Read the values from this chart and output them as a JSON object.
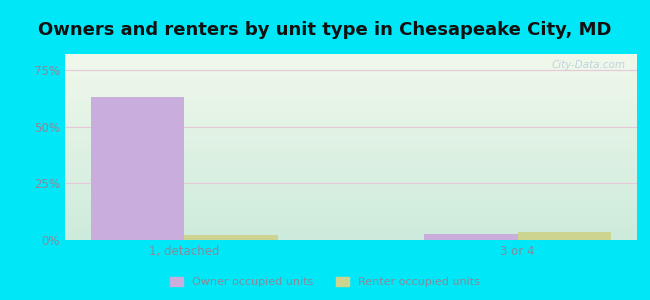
{
  "title": "Owners and renters by unit type in Chesapeake City, MD",
  "title_fontsize": 13,
  "categories": [
    "1, detached",
    "3 or 4"
  ],
  "owner_values": [
    63.0,
    2.5
  ],
  "renter_values": [
    2.0,
    3.5
  ],
  "owner_color": "#c9aedd",
  "renter_color": "#cdd490",
  "yticks": [
    0,
    25,
    50,
    75
  ],
  "ytick_labels": [
    "0%",
    "25%",
    "50%",
    "75%"
  ],
  "ylim": [
    0,
    82
  ],
  "background_outer": "#00e8f8",
  "grid_color": "#e8c8d8",
  "legend_owner": "Owner occupied units",
  "legend_renter": "Renter occupied units",
  "bar_width": 0.28,
  "watermark": "City-Data.com",
  "tick_color": "#888899",
  "title_color": "#111111"
}
